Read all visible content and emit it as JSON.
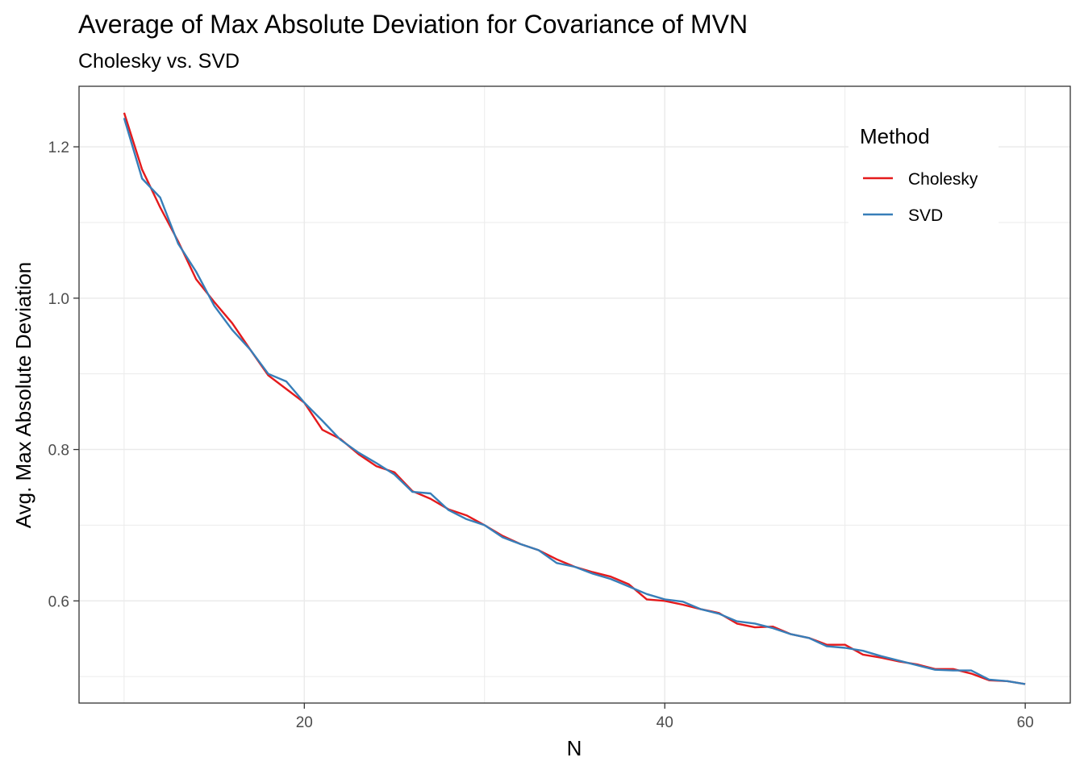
{
  "chart_data": {
    "type": "line",
    "title": "Average of Max Absolute Deviation for Covariance of MVN",
    "subtitle": "Cholesky vs. SVD",
    "xlabel": "N",
    "ylabel": "Avg. Max Absolute Deviation",
    "xlim": [
      7.5,
      62.5
    ],
    "ylim": [
      0.465,
      1.28
    ],
    "x_ticks": [
      20,
      40,
      60
    ],
    "y_ticks": [
      0.6,
      0.8,
      1.0,
      1.2
    ],
    "x_tick_labels": [
      "20",
      "40",
      "60"
    ],
    "y_tick_labels": [
      "0.6",
      "0.8",
      "1.0",
      "1.2"
    ],
    "grid": true,
    "legend": {
      "title": "Method",
      "position": "top-right inside"
    },
    "x": [
      10,
      11,
      12,
      13,
      14,
      15,
      16,
      17,
      18,
      19,
      20,
      21,
      22,
      23,
      24,
      25,
      26,
      27,
      28,
      29,
      30,
      31,
      32,
      33,
      34,
      35,
      36,
      37,
      38,
      39,
      40,
      41,
      42,
      43,
      44,
      45,
      46,
      47,
      48,
      49,
      50,
      51,
      52,
      53,
      54,
      55,
      56,
      57,
      58,
      59,
      60
    ],
    "series": [
      {
        "name": "Cholesky",
        "color": "#e41a1c",
        "values": [
          1.245,
          1.17,
          1.12,
          1.075,
          1.025,
          0.995,
          0.967,
          0.932,
          0.898,
          0.88,
          0.862,
          0.826,
          0.814,
          0.794,
          0.778,
          0.77,
          0.745,
          0.735,
          0.721,
          0.713,
          0.7,
          0.686,
          0.675,
          0.667,
          0.655,
          0.645,
          0.638,
          0.632,
          0.622,
          0.602,
          0.6,
          0.595,
          0.589,
          0.584,
          0.57,
          0.565,
          0.566,
          0.556,
          0.551,
          0.542,
          0.542,
          0.529,
          0.525,
          0.52,
          0.516,
          0.51,
          0.51,
          0.504,
          0.495,
          0.494,
          0.49
        ]
      },
      {
        "name": "SVD",
        "color": "#377eb8",
        "values": [
          1.238,
          1.158,
          1.133,
          1.072,
          1.035,
          0.99,
          0.958,
          0.932,
          0.9,
          0.89,
          0.862,
          0.838,
          0.813,
          0.796,
          0.782,
          0.767,
          0.744,
          0.742,
          0.72,
          0.708,
          0.7,
          0.684,
          0.675,
          0.667,
          0.65,
          0.645,
          0.636,
          0.629,
          0.619,
          0.609,
          0.602,
          0.599,
          0.589,
          0.583,
          0.573,
          0.57,
          0.564,
          0.556,
          0.551,
          0.54,
          0.538,
          0.534,
          0.527,
          0.521,
          0.515,
          0.509,
          0.508,
          0.508,
          0.496,
          0.494,
          0.49
        ]
      }
    ]
  }
}
